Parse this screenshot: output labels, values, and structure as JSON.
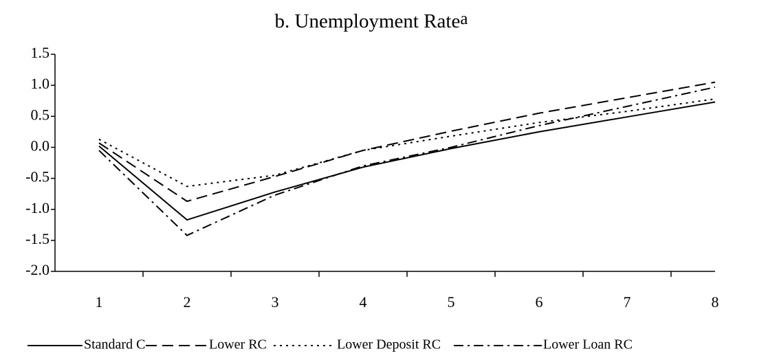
{
  "chart_data": {
    "type": "line",
    "title": "b. Unemployment Rate",
    "title_superscript": "a",
    "categories": [
      "1",
      "2",
      "3",
      "4",
      "5",
      "6",
      "7",
      "8"
    ],
    "series": [
      {
        "name": "Standard C",
        "color": "#000000",
        "dash": "solid",
        "values": [
          0.02,
          -1.17,
          -0.72,
          -0.32,
          -0.02,
          0.25,
          0.49,
          0.73
        ]
      },
      {
        "name": "Lower RC",
        "color": "#000000",
        "dash": "long-dash",
        "values": [
          0.07,
          -0.87,
          -0.47,
          -0.05,
          0.26,
          0.55,
          0.8,
          1.05
        ]
      },
      {
        "name": "Lower Deposit RC",
        "color": "#000000",
        "dash": "dot",
        "values": [
          0.13,
          -0.63,
          -0.45,
          -0.05,
          0.18,
          0.4,
          0.58,
          0.78
        ]
      },
      {
        "name": "Lower Loan RC",
        "color": "#000000",
        "dash": "dash-dot",
        "values": [
          -0.05,
          -1.42,
          -0.77,
          -0.3,
          0.0,
          0.35,
          0.66,
          0.97
        ]
      }
    ],
    "ylim": [
      -2.0,
      1.5
    ],
    "yticks": [
      1.5,
      {
        "value": 1.0,
        "label": "1.0"
      },
      0.5,
      {
        "value": 0.0,
        "label": "0.0"
      },
      -0.5,
      {
        "value": -1.0,
        "label": "-1.0"
      },
      -1.5,
      {
        "value": -2.0,
        "label": "-2.0"
      }
    ],
    "grid": false,
    "legend": "bottom"
  }
}
